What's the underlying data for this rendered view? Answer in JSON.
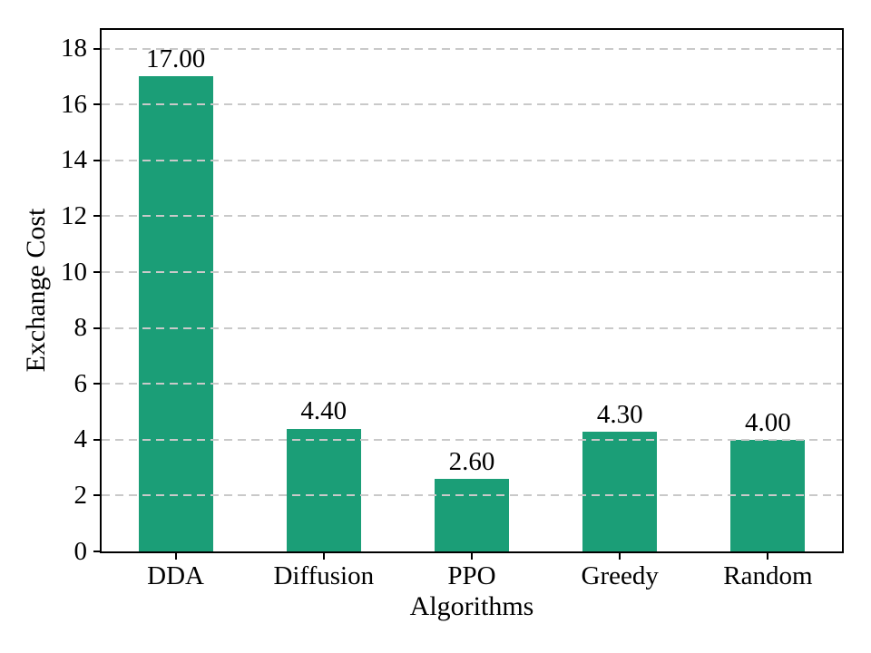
{
  "chart_data": {
    "type": "bar",
    "title": "",
    "categories": [
      "DDA",
      "Diffusion",
      "PPO",
      "Greedy",
      "Random"
    ],
    "values": [
      17.0,
      4.4,
      2.6,
      4.3,
      4.0
    ],
    "value_labels": [
      "17.00",
      "4.40",
      "2.60",
      "4.30",
      "4.00"
    ],
    "xlabel": "Algorithms",
    "ylabel": "Exchange Cost",
    "ylim": [
      0,
      18.67
    ],
    "yticks": [
      0,
      2,
      4,
      6,
      8,
      10,
      12,
      14,
      16,
      18
    ],
    "grid": "horizontal dashed lines at y ticks, drawn above bars",
    "legend": "none",
    "bar_color": "#1b9e77",
    "grid_color": "#c9c9c9",
    "axis_color": "#000000",
    "text_color": "#000000",
    "background_color": "#ffffff"
  }
}
